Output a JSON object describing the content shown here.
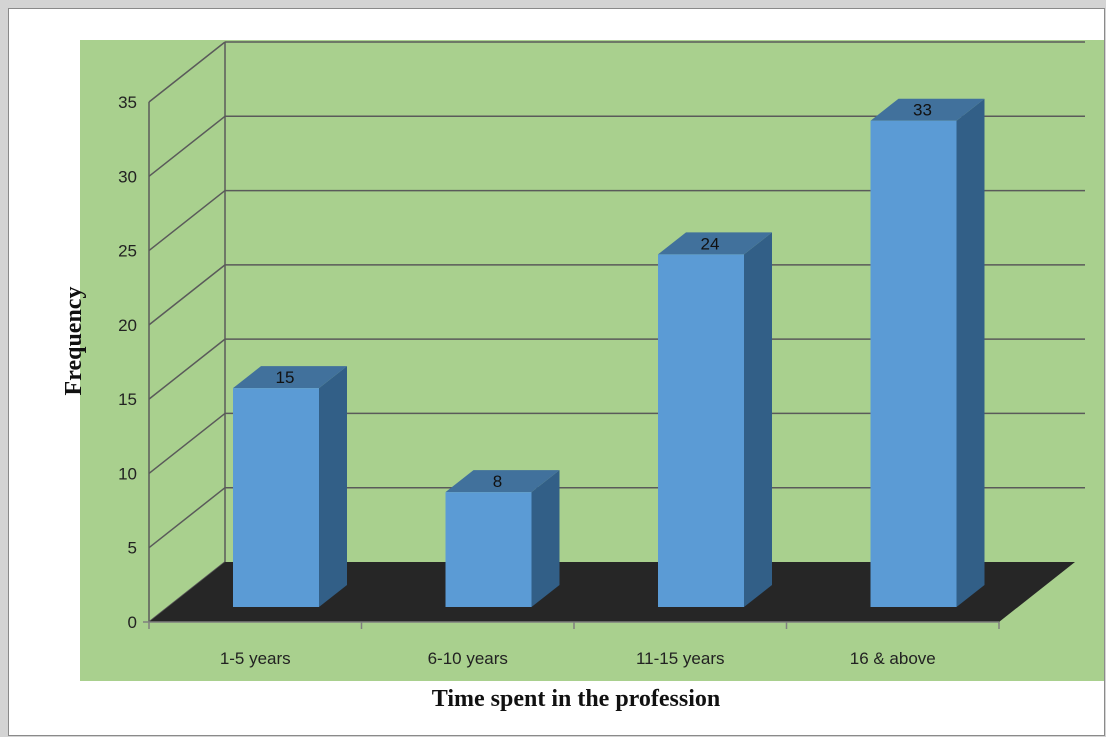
{
  "chart_data": {
    "type": "bar",
    "style": "3d-column",
    "categories": [
      "1-5 years",
      "6-10 years",
      "11-15 years",
      "16 & above"
    ],
    "values": [
      15,
      8,
      24,
      33
    ],
    "data_labels": [
      "15",
      "8",
      "24",
      "33"
    ],
    "title": "",
    "xlabel": "Time spent in the profession",
    "ylabel": "Frequency",
    "ylim": [
      0,
      35
    ],
    "yticks": [
      "0",
      "5",
      "10",
      "15",
      "20",
      "25",
      "30",
      "35"
    ],
    "grid": true,
    "legend": "none",
    "colors": {
      "plot_area": "#a9d08e",
      "gridline": "#5a5a5a",
      "floor": "#262626",
      "bar_front": "#5b9bd5",
      "bar_top": "#41719c",
      "bar_side": "#325f87"
    }
  }
}
